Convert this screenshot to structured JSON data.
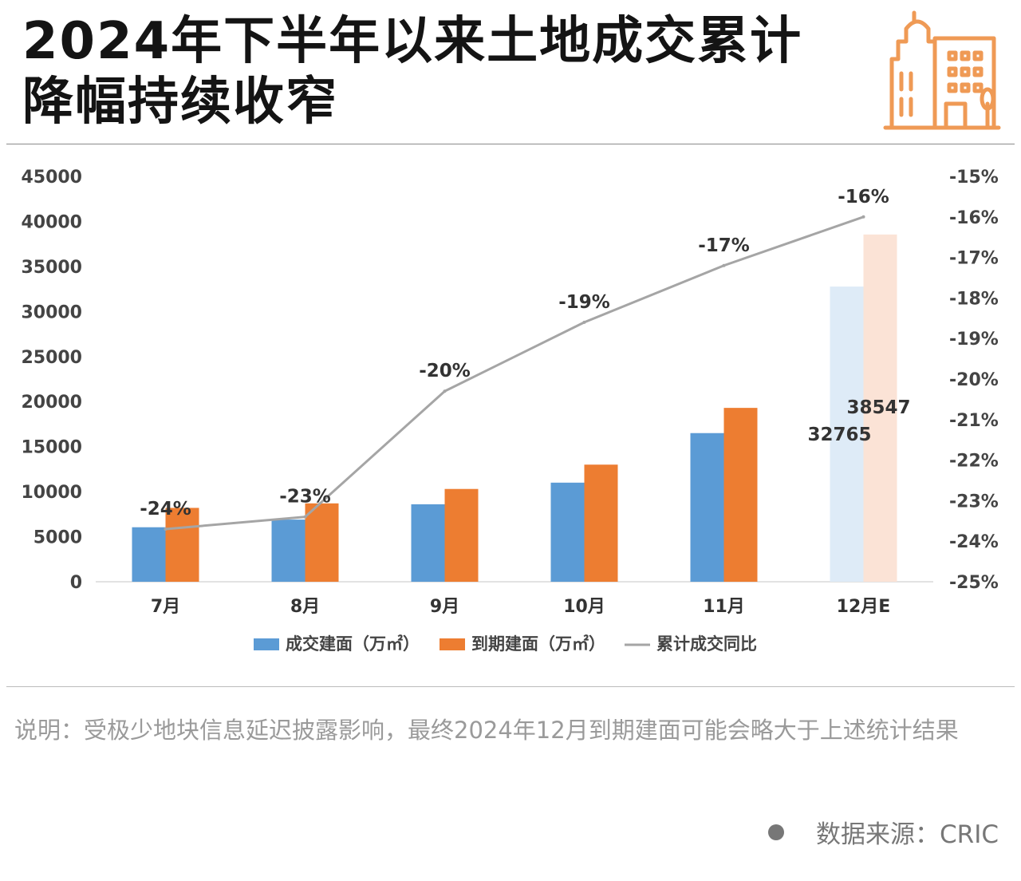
{
  "header": {
    "title_line1": "2024年下半年以来土地成交累计",
    "title_line2": "降幅持续收窄",
    "logo_icon": "city-buildings-icon"
  },
  "chart_data": {
    "type": "bar+line",
    "categories": [
      "7月",
      "8月",
      "9月",
      "10月",
      "11月",
      "12月E"
    ],
    "series": [
      {
        "name": "成交建面（万㎡）",
        "kind": "bar",
        "axis": "left",
        "color": "#5b9bd5",
        "values": [
          6050,
          6900,
          8600,
          11000,
          16500,
          32765
        ]
      },
      {
        "name": "到期建面（万㎡）",
        "kind": "bar",
        "axis": "left",
        "color": "#ed7d31",
        "values": [
          8200,
          8700,
          10300,
          13000,
          19300,
          38547
        ]
      },
      {
        "name": "累计成交同比",
        "kind": "line",
        "axis": "right",
        "color": "#a5a5a5",
        "values": [
          -23.7,
          -23.4,
          -20.3,
          -18.6,
          -17.2,
          -16.0
        ],
        "labels": [
          "-24%",
          "-23%",
          "-20%",
          "-19%",
          "-17%",
          "-16%"
        ]
      }
    ],
    "estimate_bar_colors": [
      "#deebf7",
      "#fbe3d6"
    ],
    "estimate_bar_labels": [
      "32765",
      "38547"
    ],
    "y_left": {
      "min": 0,
      "max": 45000,
      "step": 5000,
      "ticks": [
        "0",
        "5000",
        "10000",
        "15000",
        "20000",
        "25000",
        "30000",
        "35000",
        "40000",
        "45000"
      ]
    },
    "y_right": {
      "min": -25,
      "max": -15,
      "step": 1,
      "ticks": [
        "-25%",
        "-24%",
        "-23%",
        "-22%",
        "-21%",
        "-20%",
        "-19%",
        "-18%",
        "-17%",
        "-16%",
        "-15%"
      ]
    },
    "legend": [
      "成交建面（万㎡）",
      "到期建面（万㎡）",
      "累计成交同比"
    ],
    "legend_position": "bottom"
  },
  "footer": {
    "note": "说明：受极少地块信息延迟披露影响，最终2024年12月到期建面可能会略大于上述统计结果",
    "source": "数据来源：CRIC"
  }
}
